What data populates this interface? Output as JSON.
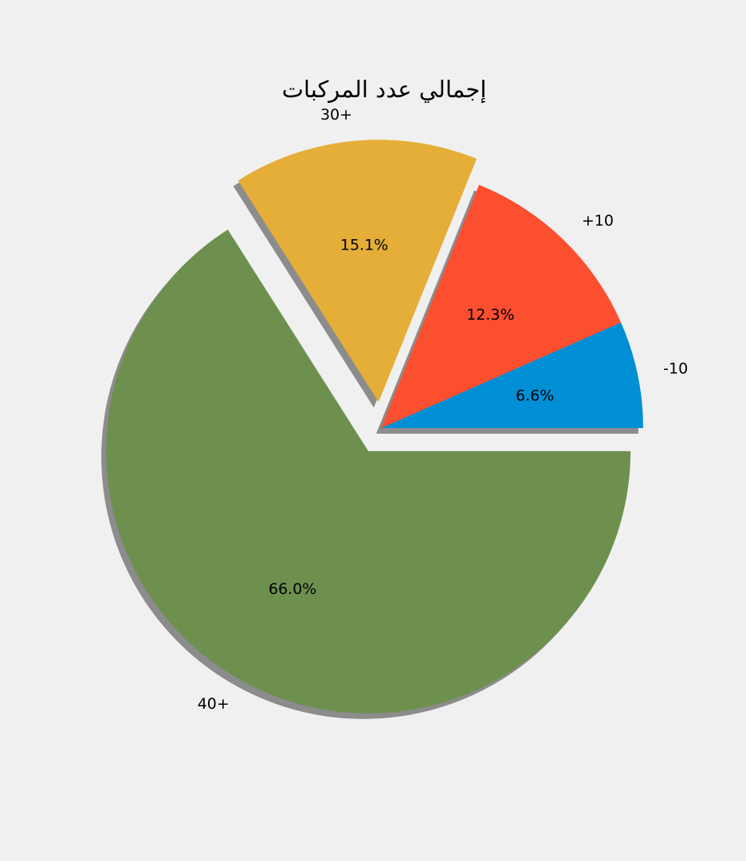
{
  "chart_data": {
    "type": "pie",
    "title": "إجمالي عدد المركبات",
    "labels": [
      "-10",
      "+10",
      "30+",
      "40+"
    ],
    "values": [
      6.6,
      12.3,
      15.1,
      66.0
    ],
    "percent_labels": [
      "6.6%",
      "12.3%",
      "15.1%",
      "66.0%"
    ],
    "colors": [
      "#008fd5",
      "#fc4f30",
      "#e5ae38",
      "#6d904f"
    ],
    "shadow_color": "#8c8c8c",
    "background": "#f0f0f0",
    "exploded_slices": [
      "30+",
      "40+"
    ],
    "start_angle_deg": 0,
    "direction": "counterclockwise"
  }
}
